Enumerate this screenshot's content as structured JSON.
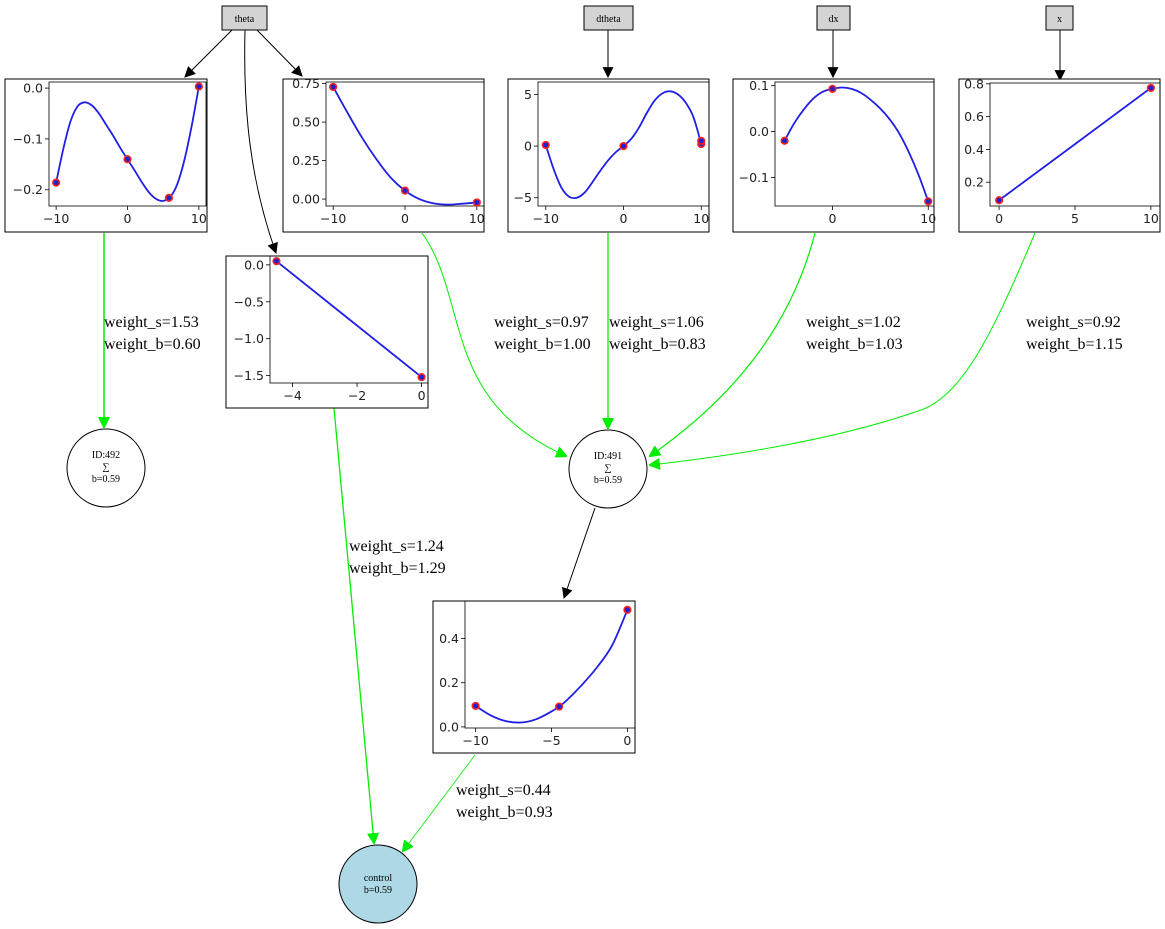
{
  "colors": {
    "edge_weighted": "#00ee00",
    "edge_plain": "#000000",
    "curve": "#1f1fe6",
    "point_fill": "#2020cc",
    "point_edge": "#ff2020",
    "input_box": "#d3d3d3",
    "output_node": "#add8e6"
  },
  "inputs": [
    {
      "id": "theta",
      "label": "theta"
    },
    {
      "id": "dtheta",
      "label": "dtheta"
    },
    {
      "id": "dx",
      "label": "dx"
    },
    {
      "id": "x",
      "label": "x"
    }
  ],
  "nodes": [
    {
      "id": "n492",
      "lines": [
        "ID:492",
        "∑",
        "b=0.59"
      ]
    },
    {
      "id": "n491",
      "lines": [
        "ID:491",
        "∑",
        "b=0.59"
      ]
    },
    {
      "id": "control",
      "lines": [
        "control",
        "b=0.59"
      ]
    }
  ],
  "edge_labels": [
    {
      "id": "e1",
      "s": "weight_s=1.53",
      "b": "weight_b=0.60"
    },
    {
      "id": "e2",
      "s": "weight_s=0.97",
      "b": "weight_b=1.00"
    },
    {
      "id": "e3",
      "s": "weight_s=1.06",
      "b": "weight_b=0.83"
    },
    {
      "id": "e4",
      "s": "weight_s=1.02",
      "b": "weight_b=1.03"
    },
    {
      "id": "e5",
      "s": "weight_s=0.92",
      "b": "weight_b=1.15"
    },
    {
      "id": "e6",
      "s": "weight_s=1.24",
      "b": "weight_b=1.29"
    },
    {
      "id": "e7",
      "s": "weight_s=0.44",
      "b": "weight_b=0.93"
    }
  ],
  "chart_data": [
    {
      "id": "p1",
      "type": "line",
      "xlim": [
        -11,
        11
      ],
      "ylim": [
        -0.232,
        0.012
      ],
      "xticks": [
        {
          "v": -10,
          "t": "−10"
        },
        {
          "v": 0,
          "t": "0"
        },
        {
          "v": 10,
          "t": "10"
        }
      ],
      "yticks": [
        {
          "v": 0.0,
          "t": "0.0"
        },
        {
          "v": -0.1,
          "t": "−0.1"
        },
        {
          "v": -0.2,
          "t": "−0.2"
        }
      ],
      "curve": [
        [
          -10,
          -0.186
        ],
        [
          -9,
          -0.12
        ],
        [
          -8,
          -0.066
        ],
        [
          -7,
          -0.036
        ],
        [
          -6,
          -0.028
        ],
        [
          -5,
          -0.034
        ],
        [
          -4,
          -0.05
        ],
        [
          -3,
          -0.072
        ],
        [
          -2,
          -0.094
        ],
        [
          -1,
          -0.118
        ],
        [
          0,
          -0.14
        ],
        [
          1,
          -0.162
        ],
        [
          2,
          -0.185
        ],
        [
          3,
          -0.205
        ],
        [
          4,
          -0.218
        ],
        [
          5,
          -0.222
        ],
        [
          6,
          -0.214
        ],
        [
          7,
          -0.188
        ],
        [
          8,
          -0.14
        ],
        [
          9,
          -0.074
        ],
        [
          10,
          0.003
        ]
      ],
      "points": [
        [
          -10,
          -0.186
        ],
        [
          0,
          -0.14
        ],
        [
          5.8,
          -0.216
        ],
        [
          10,
          0.003
        ]
      ]
    },
    {
      "id": "p2",
      "type": "line",
      "xlim": [
        -11,
        11
      ],
      "ylim": [
        -0.045,
        0.76
      ],
      "xticks": [
        {
          "v": -10,
          "t": "−10"
        },
        {
          "v": 0,
          "t": "0"
        },
        {
          "v": 10,
          "t": "10"
        }
      ],
      "yticks": [
        {
          "v": 0.75,
          "t": "0.75"
        },
        {
          "v": 0.5,
          "t": "0.50"
        },
        {
          "v": 0.25,
          "t": "0.25"
        },
        {
          "v": 0.0,
          "t": "0.00"
        }
      ],
      "curve": [
        [
          -10,
          0.728
        ],
        [
          -8,
          0.56
        ],
        [
          -6,
          0.4
        ],
        [
          -4,
          0.26
        ],
        [
          -2,
          0.14
        ],
        [
          0,
          0.055
        ],
        [
          2,
          0.0
        ],
        [
          4,
          -0.028
        ],
        [
          6,
          -0.036
        ],
        [
          8,
          -0.03
        ],
        [
          10,
          -0.022
        ]
      ],
      "points": [
        [
          -10,
          0.728
        ],
        [
          0,
          0.055
        ],
        [
          10,
          -0.022
        ]
      ]
    },
    {
      "id": "p3",
      "type": "line",
      "xlim": [
        -11,
        11
      ],
      "ylim": [
        -5.8,
        6.2
      ],
      "xticks": [
        {
          "v": -10,
          "t": "−10"
        },
        {
          "v": 0,
          "t": "0"
        },
        {
          "v": 10,
          "t": "10"
        }
      ],
      "yticks": [
        {
          "v": 5,
          "t": "5"
        },
        {
          "v": 0,
          "t": "0"
        },
        {
          "v": -5,
          "t": "−5"
        }
      ],
      "curve": [
        [
          -10,
          0.1
        ],
        [
          -9,
          -2.2
        ],
        [
          -8,
          -4.0
        ],
        [
          -7,
          -4.9
        ],
        [
          -6,
          -5.0
        ],
        [
          -5,
          -4.5
        ],
        [
          -4,
          -3.5
        ],
        [
          -3,
          -2.4
        ],
        [
          -2,
          -1.4
        ],
        [
          -1,
          -0.6
        ],
        [
          0,
          0.0
        ],
        [
          1,
          0.7
        ],
        [
          2,
          1.8
        ],
        [
          3,
          3.2
        ],
        [
          4,
          4.4
        ],
        [
          5,
          5.1
        ],
        [
          6,
          5.3
        ],
        [
          7,
          5.0
        ],
        [
          8,
          4.2
        ],
        [
          9,
          2.8
        ],
        [
          10,
          0.2
        ]
      ],
      "points": [
        [
          -10,
          0.1
        ],
        [
          0,
          0.0
        ],
        [
          10,
          0.2
        ],
        [
          10,
          0.5
        ]
      ]
    },
    {
      "id": "p4",
      "type": "line",
      "xlim": [
        -6.0,
        10.6
      ],
      "ylim": [
        -0.162,
        0.108
      ],
      "xticks": [
        {
          "v": 0,
          "t": "0"
        },
        {
          "v": 10,
          "t": "10"
        }
      ],
      "yticks": [
        {
          "v": 0.1,
          "t": "0.1"
        },
        {
          "v": 0.0,
          "t": "0.0"
        },
        {
          "v": -0.1,
          "t": "−0.1"
        }
      ],
      "curve": [
        [
          -5,
          -0.02
        ],
        [
          -4,
          0.018
        ],
        [
          -3,
          0.048
        ],
        [
          -2,
          0.072
        ],
        [
          -1,
          0.087
        ],
        [
          0,
          0.093
        ],
        [
          1,
          0.096
        ],
        [
          2,
          0.093
        ],
        [
          3,
          0.084
        ],
        [
          4,
          0.069
        ],
        [
          5,
          0.05
        ],
        [
          6,
          0.026
        ],
        [
          7,
          -0.005
        ],
        [
          8,
          -0.046
        ],
        [
          9,
          -0.095
        ],
        [
          10,
          -0.152
        ]
      ],
      "points": [
        [
          -5,
          -0.02
        ],
        [
          0,
          0.093
        ],
        [
          10,
          -0.152
        ]
      ]
    },
    {
      "id": "p5",
      "type": "line",
      "xlim": [
        -0.6,
        10.6
      ],
      "ylim": [
        0.055,
        0.805
      ],
      "xticks": [
        {
          "v": 0,
          "t": "0"
        },
        {
          "v": 5,
          "t": "5"
        },
        {
          "v": 10,
          "t": "10"
        }
      ],
      "yticks": [
        {
          "v": 0.8,
          "t": "0.8"
        },
        {
          "v": 0.6,
          "t": "0.6"
        },
        {
          "v": 0.4,
          "t": "0.4"
        },
        {
          "v": 0.2,
          "t": "0.2"
        }
      ],
      "curve": [
        [
          0,
          0.09
        ],
        [
          10,
          0.775
        ]
      ],
      "points": [
        [
          0,
          0.09
        ],
        [
          10,
          0.775
        ]
      ]
    },
    {
      "id": "p6",
      "type": "line",
      "xlim": [
        -4.7,
        0.2
      ],
      "ylim": [
        -1.6,
        0.12
      ],
      "xticks": [
        {
          "v": -4,
          "t": "−4"
        },
        {
          "v": -2,
          "t": "−2"
        },
        {
          "v": 0,
          "t": "0"
        }
      ],
      "yticks": [
        {
          "v": 0.0,
          "t": "0.0"
        },
        {
          "v": -0.5,
          "t": "−0.5"
        },
        {
          "v": -1.0,
          "t": "−1.0"
        },
        {
          "v": -1.5,
          "t": "−1.5"
        }
      ],
      "curve": [
        [
          -4.5,
          0.05
        ],
        [
          0,
          -1.52
        ]
      ],
      "points": [
        [
          -4.5,
          0.05
        ],
        [
          0,
          -1.52
        ]
      ]
    },
    {
      "id": "p7",
      "type": "line",
      "xlim": [
        -10.7,
        0.5
      ],
      "ylim": [
        -0.005,
        0.57
      ],
      "xticks": [
        {
          "v": -10,
          "t": "−10"
        },
        {
          "v": -5,
          "t": "−5"
        },
        {
          "v": 0,
          "t": "0"
        }
      ],
      "yticks": [
        {
          "v": 0.4,
          "t": "0.4"
        },
        {
          "v": 0.2,
          "t": "0.2"
        },
        {
          "v": 0.0,
          "t": "0.0"
        }
      ],
      "curve": [
        [
          -10,
          0.095
        ],
        [
          -9,
          0.052
        ],
        [
          -8,
          0.026
        ],
        [
          -7,
          0.02
        ],
        [
          -6,
          0.035
        ],
        [
          -5,
          0.07
        ],
        [
          -4.5,
          0.092
        ],
        [
          -4,
          0.12
        ],
        [
          -3,
          0.19
        ],
        [
          -2,
          0.27
        ],
        [
          -1,
          0.37
        ],
        [
          0,
          0.53
        ]
      ],
      "points": [
        [
          -10,
          0.095
        ],
        [
          -4.5,
          0.092
        ],
        [
          0,
          0.53
        ]
      ]
    }
  ]
}
